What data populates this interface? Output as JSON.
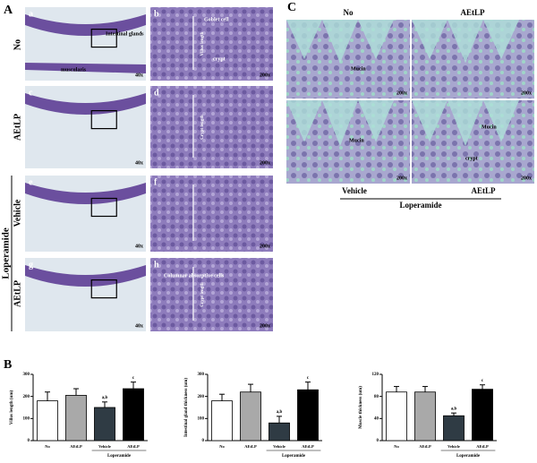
{
  "panel_a": {
    "label": "A",
    "rows": [
      "No",
      "AEtLP",
      "Vehicle",
      "AEtLP"
    ],
    "group": "Loperamide",
    "images": [
      {
        "letter": "a",
        "magnification": "40x",
        "notes": [
          "Intestinal glands",
          "muscularis"
        ]
      },
      {
        "letter": "b",
        "magnification": "200x",
        "notes": [
          "Goblet cell",
          "crypt",
          "Villus length"
        ]
      },
      {
        "letter": "c",
        "magnification": "40x",
        "notes": []
      },
      {
        "letter": "d",
        "magnification": "200x",
        "notes": [
          "Crypt length"
        ]
      },
      {
        "letter": "e",
        "magnification": "40x",
        "notes": []
      },
      {
        "letter": "f",
        "magnification": "200x",
        "notes": []
      },
      {
        "letter": "g",
        "magnification": "40x",
        "notes": []
      },
      {
        "letter": "h",
        "magnification": "200x",
        "notes": [
          "Columnar absorptive cells",
          "Crypt length"
        ]
      }
    ]
  },
  "panel_c": {
    "label": "C",
    "columns": [
      "No",
      "AEtLP"
    ],
    "bottom": [
      "Vehicle",
      "AEtLP"
    ],
    "group": "Loperamide",
    "images": [
      {
        "magnification": "200x",
        "notes": [
          "Mucin"
        ]
      },
      {
        "magnification": "200x",
        "notes": []
      },
      {
        "magnification": "200x",
        "notes": [
          "Mucin"
        ]
      },
      {
        "magnification": "200x",
        "notes": [
          "Mucin",
          "crypt"
        ]
      }
    ]
  },
  "panel_b": {
    "label": "B"
  },
  "chart_data": [
    {
      "type": "bar",
      "ylabel": "Villus length (um)",
      "categories": [
        "No",
        "AEtLP",
        "Vehicle",
        "AEtLP"
      ],
      "values": [
        180,
        205,
        150,
        235
      ],
      "errors": [
        40,
        30,
        25,
        30
      ],
      "colors": [
        "#ffffff",
        "#a9a9a9",
        "#2f3b44",
        "#000000"
      ],
      "ylim": [
        0,
        300
      ],
      "yticks": [
        0,
        100,
        200,
        300
      ],
      "bar_labels": [
        {
          "index": 2,
          "text": "a,b"
        },
        {
          "index": 3,
          "text": "c"
        }
      ],
      "group": {
        "label": "Loperamide",
        "from": 2,
        "to": 3
      }
    },
    {
      "type": "bar",
      "ylabel": "Intestinal gland thickness (um)",
      "categories": [
        "No",
        "AEtLP",
        "Vehicle",
        "AEtLP"
      ],
      "values": [
        180,
        220,
        80,
        230
      ],
      "errors": [
        30,
        35,
        30,
        35
      ],
      "colors": [
        "#ffffff",
        "#a9a9a9",
        "#2f3b44",
        "#000000"
      ],
      "ylim": [
        0,
        300
      ],
      "yticks": [
        0,
        100,
        200,
        300
      ],
      "bar_labels": [
        {
          "index": 2,
          "text": "a,b"
        },
        {
          "index": 3,
          "text": "c"
        }
      ],
      "group": {
        "label": "Loperamide",
        "from": 2,
        "to": 3
      }
    },
    {
      "type": "bar",
      "ylabel": "Muscle thickness (um)",
      "categories": [
        "No",
        "AEtLP",
        "Vehicle",
        "AEtLP"
      ],
      "values": [
        88,
        88,
        45,
        93
      ],
      "errors": [
        10,
        10,
        5,
        8
      ],
      "colors": [
        "#ffffff",
        "#a9a9a9",
        "#2f3b44",
        "#000000"
      ],
      "ylim": [
        0,
        120
      ],
      "yticks": [
        0,
        40,
        80,
        120
      ],
      "bar_labels": [
        {
          "index": 2,
          "text": "a,b"
        },
        {
          "index": 3,
          "text": "c"
        }
      ],
      "group": {
        "label": "Loperamide",
        "from": 2,
        "to": 3
      }
    }
  ]
}
